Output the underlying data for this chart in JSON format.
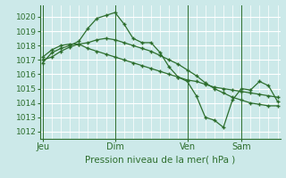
{
  "background_color": "#cce9e9",
  "grid_color": "#ffffff",
  "line_color": "#2d6e2d",
  "title": "Pression niveau de la mer( hPa )",
  "ylim": [
    1011.5,
    1020.8
  ],
  "yticks": [
    1012,
    1013,
    1014,
    1015,
    1016,
    1017,
    1018,
    1019,
    1020
  ],
  "day_labels": [
    "Jeu",
    "Dim",
    "Ven",
    "Sam"
  ],
  "day_positions": [
    0,
    8,
    16,
    22
  ],
  "xlim": [
    -0.3,
    26.3
  ],
  "series1": [
    1016.8,
    1017.5,
    1017.8,
    1018.0,
    1018.3,
    1019.2,
    1019.9,
    1020.1,
    1020.3,
    1019.5,
    1018.5,
    1018.2,
    1018.2,
    1017.5,
    1016.5,
    1015.8,
    1015.5,
    1014.5,
    1013.0,
    1012.8,
    1012.3,
    1014.2,
    1015.0,
    1014.9,
    1015.5,
    1015.2,
    1014.1
  ],
  "series2": [
    1017.2,
    1017.7,
    1018.0,
    1018.1,
    1018.1,
    1017.8,
    1017.6,
    1017.4,
    1017.2,
    1017.0,
    1016.8,
    1016.6,
    1016.4,
    1016.2,
    1016.0,
    1015.8,
    1015.6,
    1015.5,
    1015.3,
    1015.1,
    1015.0,
    1014.9,
    1014.8,
    1014.7,
    1014.6,
    1014.5,
    1014.4
  ],
  "series3": [
    1017.0,
    1017.2,
    1017.6,
    1017.9,
    1018.1,
    1018.2,
    1018.4,
    1018.5,
    1018.4,
    1018.2,
    1018.0,
    1017.8,
    1017.6,
    1017.3,
    1017.0,
    1016.7,
    1016.3,
    1015.9,
    1015.4,
    1015.0,
    1014.7,
    1014.4,
    1014.2,
    1014.0,
    1013.9,
    1013.8,
    1013.8
  ],
  "title_fontsize": 7.5,
  "tick_fontsize": 6.5,
  "xlabel_fontsize": 7.0
}
